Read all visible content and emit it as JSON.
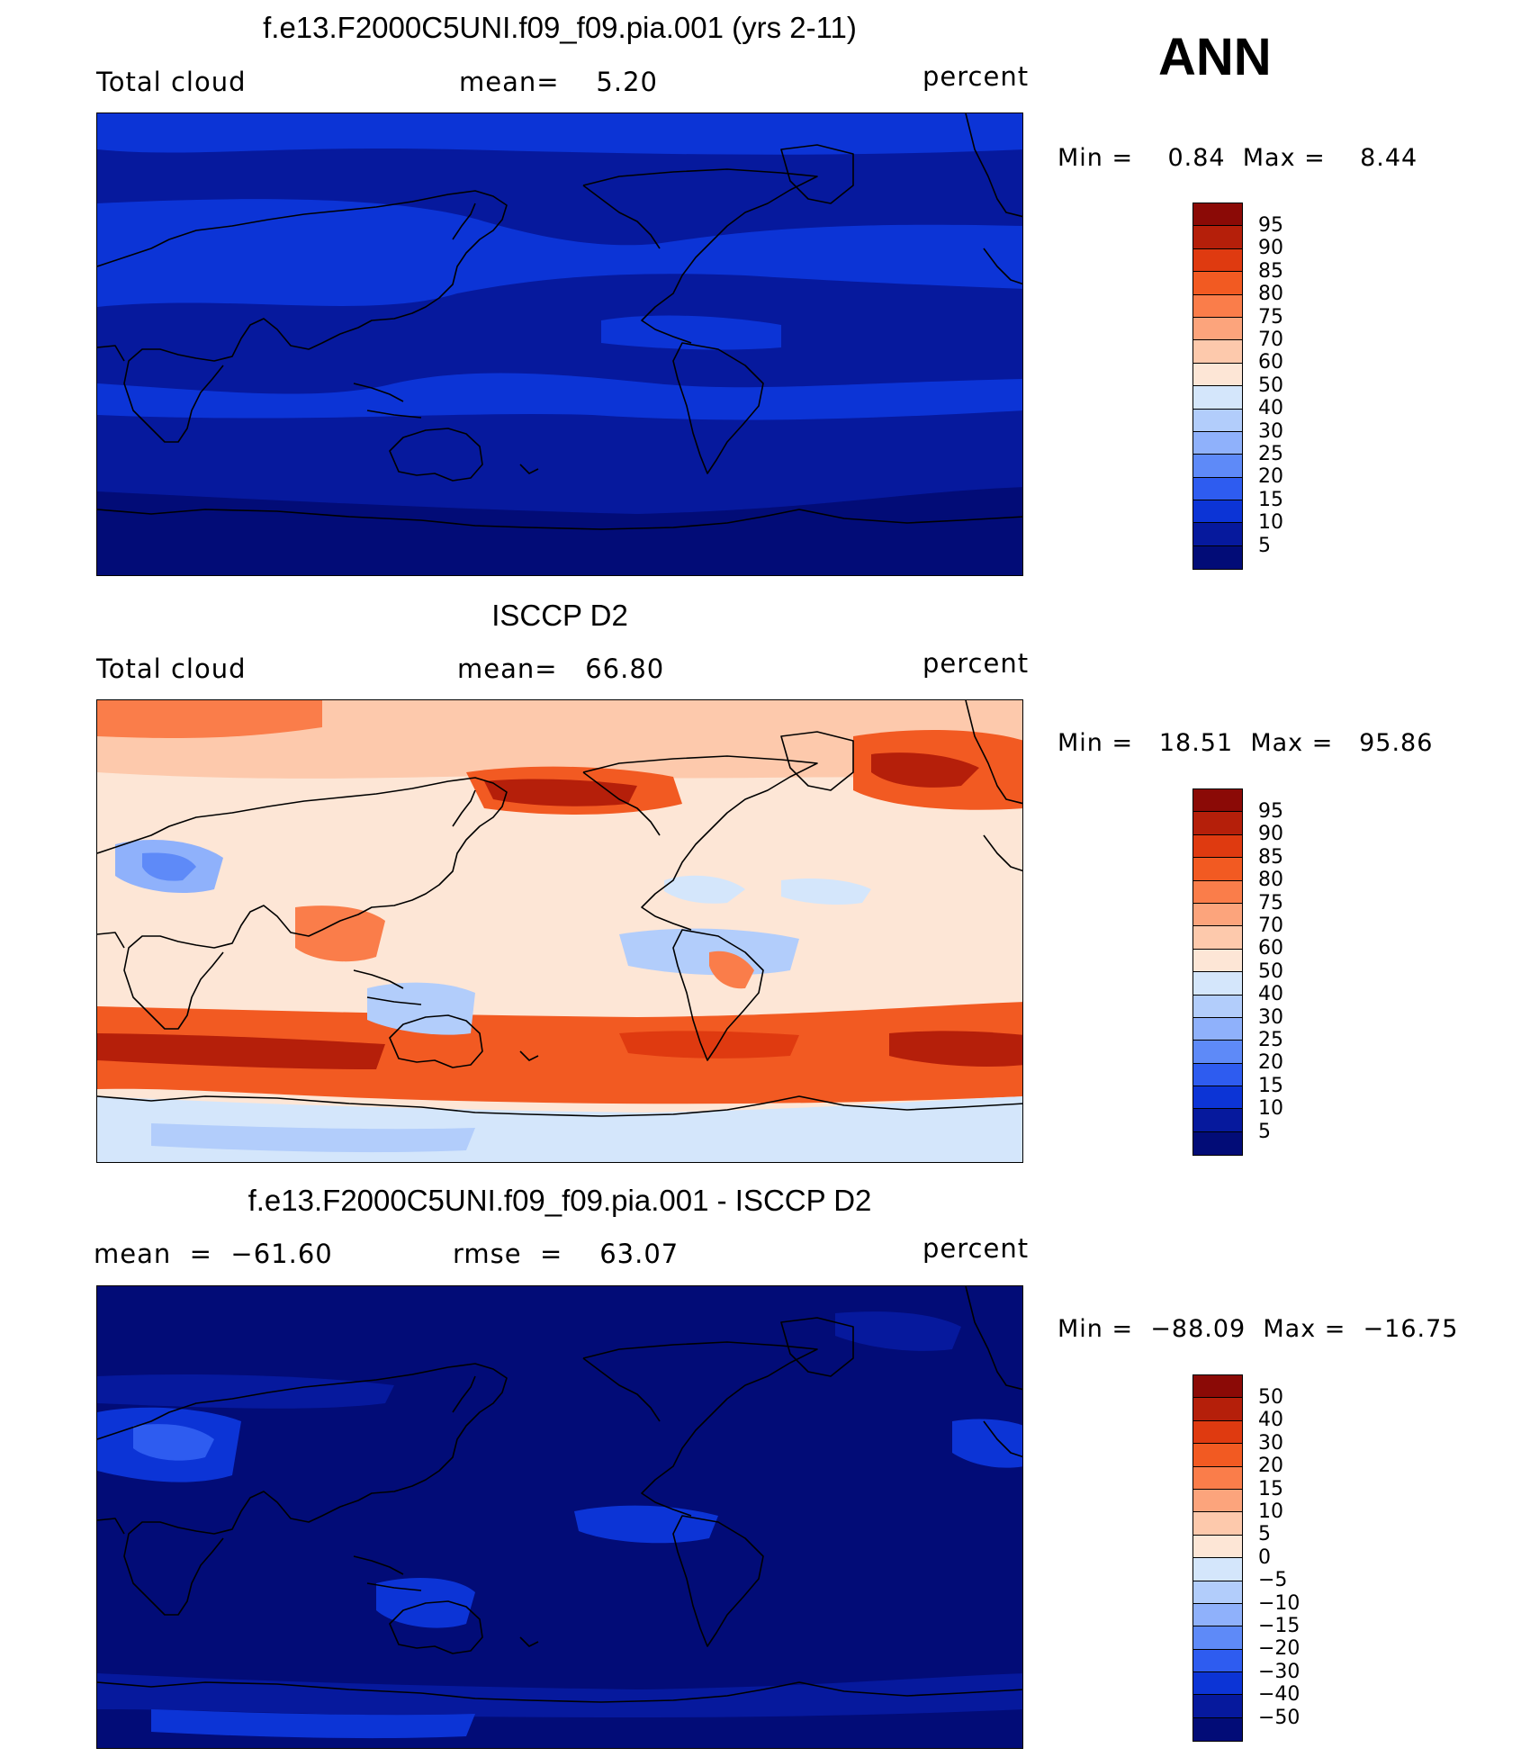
{
  "season": "ANN",
  "panels": [
    {
      "title": "f.e13.F2000C5UNI.f09_f09.pia.001 (yrs 2-11)",
      "left_label": "Total cloud",
      "center_label": "mean=    5.20",
      "right_label": "percent",
      "minmax": "Min =    0.84  Max =    8.44",
      "field": "model",
      "colorbar": {
        "labels": [
          "95",
          "90",
          "85",
          "80",
          "75",
          "70",
          "60",
          "50",
          "40",
          "30",
          "25",
          "20",
          "15",
          "10",
          "5"
        ],
        "colors": [
          "#8b0a06",
          "#b51f0a",
          "#df3a10",
          "#f25a22",
          "#fa7d4a",
          "#fca47c",
          "#fdc9ac",
          "#fde6d6",
          "#d4e6fb",
          "#b2cdfb",
          "#8fb1fb",
          "#5e8af8",
          "#2e5cf0",
          "#0c34d6",
          "#06199d",
          "#020c77"
        ]
      },
      "stats": {
        "mean": 5.2,
        "min": 0.84,
        "max": 8.44,
        "units": "percent"
      }
    },
    {
      "title": "ISCCP D2",
      "left_label": "Total cloud",
      "center_label": "mean=   66.80",
      "right_label": "percent",
      "minmax": "Min =   18.51  Max =   95.86",
      "field": "obs",
      "colorbar": {
        "labels": [
          "95",
          "90",
          "85",
          "80",
          "75",
          "70",
          "60",
          "50",
          "40",
          "30",
          "25",
          "20",
          "15",
          "10",
          "5"
        ],
        "colors": [
          "#8b0a06",
          "#b51f0a",
          "#df3a10",
          "#f25a22",
          "#fa7d4a",
          "#fca47c",
          "#fdc9ac",
          "#fde6d6",
          "#d4e6fb",
          "#b2cdfb",
          "#8fb1fb",
          "#5e8af8",
          "#2e5cf0",
          "#0c34d6",
          "#06199d",
          "#020c77"
        ]
      },
      "stats": {
        "mean": 66.8,
        "min": 18.51,
        "max": 95.86,
        "units": "percent"
      }
    },
    {
      "title": "f.e13.F2000C5UNI.f09_f09.pia.001 - ISCCP D2",
      "left_label": "mean  =  −61.60",
      "center_label": "rmse  =    63.07",
      "right_label": "percent",
      "minmax": "Min =  −88.09  Max =  −16.75",
      "field": "diff",
      "colorbar": {
        "labels": [
          "50",
          "40",
          "30",
          "20",
          "15",
          "10",
          "5",
          "0",
          "−5",
          "−10",
          "−15",
          "−20",
          "−30",
          "−40",
          "−50"
        ],
        "colors": [
          "#8b0a06",
          "#b51f0a",
          "#df3a10",
          "#f25a22",
          "#fa7d4a",
          "#fca47c",
          "#fdc9ac",
          "#fde6d6",
          "#d4e6fb",
          "#b2cdfb",
          "#8fb1fb",
          "#5e8af8",
          "#2e5cf0",
          "#0c34d6",
          "#06199d",
          "#020c77"
        ]
      },
      "stats": {
        "mean": -61.6,
        "rmse": 63.07,
        "min": -88.09,
        "max": -16.75,
        "units": "percent"
      }
    }
  ]
}
